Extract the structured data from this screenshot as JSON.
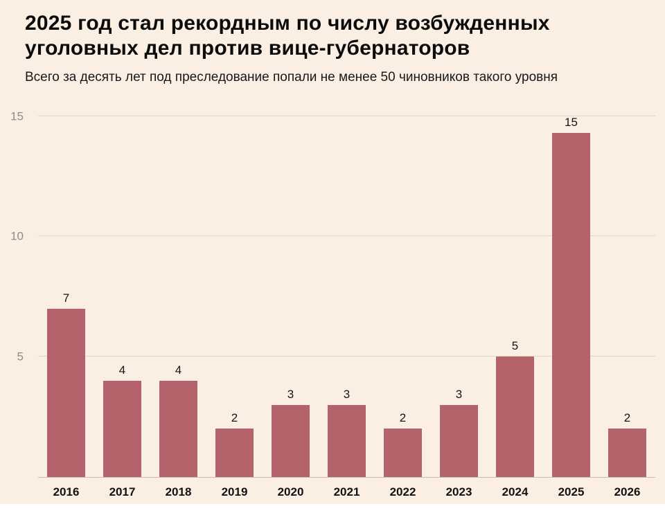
{
  "colors": {
    "background": "#fbefe4",
    "bar": "#b4636b",
    "gridline": "#e0d5c9",
    "axis_line": "#c8bcb1",
    "ytick_text": "#8e8c89"
  },
  "header": {
    "title": "2025 год стал рекордным по числу возбужденных уголовных дел против вице-губернаторов",
    "subtitle": "Всего за десять лет под преследование попали не менее 50 чиновников такого уровня"
  },
  "chart_data": {
    "type": "bar",
    "title": "2025 год стал рекордным по числу возбужденных уголовных дел против вице-губернаторов",
    "subtitle": "Всего за десять лет под преследование попали не менее 50 чиновников такого уровня",
    "categories": [
      "2016",
      "2017",
      "2018",
      "2019",
      "2020",
      "2021",
      "2022",
      "2023",
      "2024",
      "2025",
      "2026"
    ],
    "values": [
      7,
      4,
      4,
      2,
      3,
      3,
      2,
      3,
      5,
      15,
      2
    ],
    "xlabel": "",
    "ylabel": "",
    "ylim": [
      0,
      15
    ],
    "yticks": [
      5,
      10,
      15
    ],
    "grid": true,
    "legend": false,
    "bar_color": "#b4636b",
    "data_labels": true
  }
}
